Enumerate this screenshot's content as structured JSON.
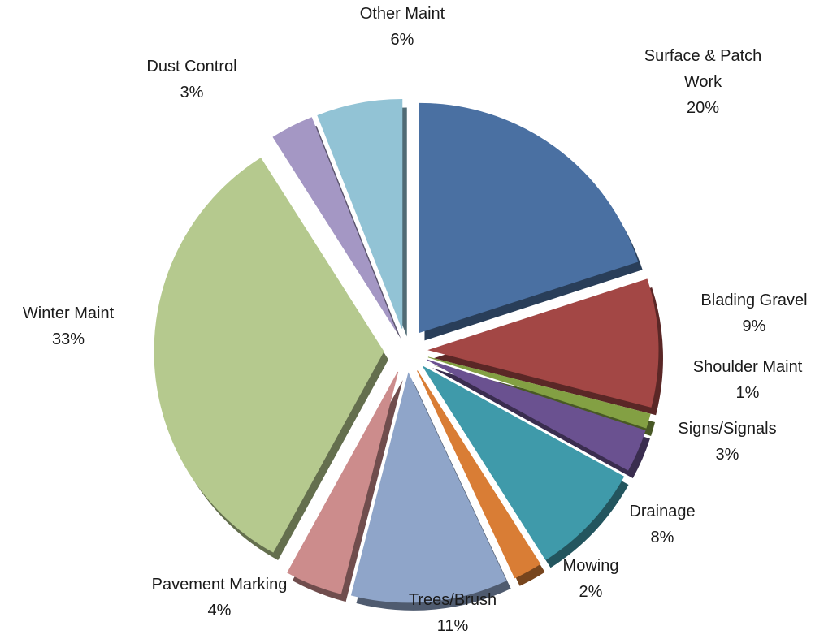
{
  "chart_data": {
    "type": "pie",
    "style": "exploded-3d",
    "legend": "none",
    "slices": [
      {
        "name": "Surface & Patch Work",
        "label_lines": [
          "Surface & Patch",
          "Work"
        ],
        "value": 20,
        "value_label": "20%",
        "color": "#4a70a2"
      },
      {
        "name": "Blading Gravel",
        "label_lines": [
          "Blading Gravel"
        ],
        "value": 9,
        "value_label": "9%",
        "color": "#a34745"
      },
      {
        "name": "Shoulder Maint",
        "label_lines": [
          "Shoulder Maint"
        ],
        "value": 1,
        "value_label": "1%",
        "color": "#83a043"
      },
      {
        "name": "Signs/Signals",
        "label_lines": [
          "Signs/Signals"
        ],
        "value": 3,
        "value_label": "3%",
        "color": "#6a5190"
      },
      {
        "name": "Drainage",
        "label_lines": [
          "Drainage"
        ],
        "value": 8,
        "value_label": "8%",
        "color": "#3f9aaa"
      },
      {
        "name": "Mowing",
        "label_lines": [
          "Mowing"
        ],
        "value": 2,
        "value_label": "2%",
        "color": "#d97d35"
      },
      {
        "name": "Trees/Brush",
        "label_lines": [
          "Trees/Brush"
        ],
        "value": 11,
        "value_label": "11%",
        "color": "#8fa5c9"
      },
      {
        "name": "Pavement Marking",
        "label_lines": [
          "Pavement Marking"
        ],
        "value": 4,
        "value_label": "4%",
        "color": "#cc8c8c"
      },
      {
        "name": "Winter Maint",
        "label_lines": [
          "Winter Maint"
        ],
        "value": 33,
        "value_label": "33%",
        "color": "#b5c98e"
      },
      {
        "name": "Dust Control",
        "label_lines": [
          "Dust Control"
        ],
        "value": 3,
        "value_label": "3%",
        "color": "#a497c4"
      },
      {
        "name": "Other Maint",
        "label_lines": [
          "Other Maint"
        ],
        "value": 6,
        "value_label": "6%",
        "color": "#92c3d5"
      }
    ]
  }
}
